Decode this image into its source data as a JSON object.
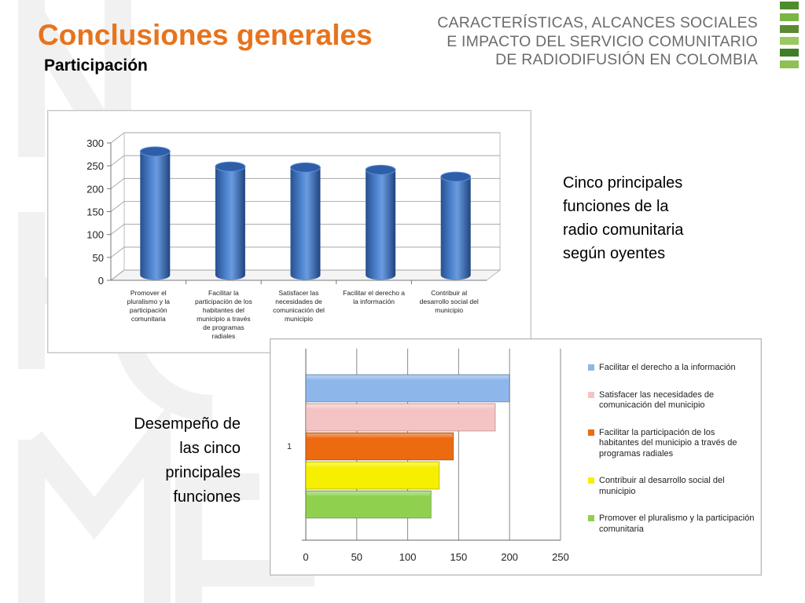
{
  "header": {
    "title": "Conclusiones generales",
    "subtitle": "Participación",
    "brand_lines": [
      "CARACTERÍSTICAS, ALCANCES SOCIALES",
      "E IMPACTO DEL SERVICIO COMUNITARIO",
      "DE RADIODIFUSIÓN EN COLOMBIA"
    ]
  },
  "notes": {
    "right_lines": [
      "Cinco principales",
      "funciones de la",
      "radio comunitaria",
      "según oyentes"
    ],
    "left_lines": [
      "Desempeño de",
      "las cinco",
      "principales",
      "funciones"
    ]
  },
  "chart_data": [
    {
      "type": "bar",
      "style": "3d-cylinder",
      "categories": [
        "Promover el pluralismo y la participación comunitaria",
        "Facilitar la participación de los habitantes del municipio a través de programas radiales",
        "Satisfacer las necesidades de comunicación del municipio",
        "Facilitar el derecho a la información",
        "Contribuir al desarrollo social del municipio"
      ],
      "category_label_lines": [
        [
          "Promover el",
          "pluralismo y la",
          "participación",
          "comunitaria"
        ],
        [
          "Facilitar la",
          "participación de los",
          "habitantes del",
          "municipio a través",
          "de programas",
          "radiales"
        ],
        [
          "Satisfacer las",
          "necesidades de",
          "comunicación del",
          "municipio"
        ],
        [
          "Facilitar el derecho a",
          "la información"
        ],
        [
          "Contribuir al",
          "desarrollo social del",
          "municipio"
        ]
      ],
      "values": [
        270,
        237,
        235,
        230,
        215
      ],
      "ylim": [
        0,
        300
      ],
      "yticks": [
        "0",
        "50",
        "100",
        "150",
        "200",
        "250",
        "300"
      ],
      "color": "#3f6fb4",
      "grid": true,
      "legend": "none"
    },
    {
      "type": "bar",
      "orientation": "horizontal",
      "category_label": "1",
      "series": [
        {
          "name": "Facilitar el derecho a la información",
          "value": 200,
          "color": "#8db6ea"
        },
        {
          "name": "Satisfacer las necesidades de comunicación del municipio",
          "value": 186,
          "color": "#f4c4c4"
        },
        {
          "name": "Facilitar la participación de los habitantes del municipio a través de programas radiales",
          "value": 145,
          "color": "#ec6a10"
        },
        {
          "name": "Contribuir al desarrollo social del municipio",
          "value": 131,
          "color": "#f7ef00"
        },
        {
          "name": "Promover el pluralismo y la participación comunitaria",
          "value": 123,
          "color": "#8fd14f"
        }
      ],
      "xlim": [
        0,
        250
      ],
      "xticks": [
        "0",
        "50",
        "100",
        "150",
        "200",
        "250"
      ],
      "grid": true,
      "legend": "right"
    }
  ]
}
